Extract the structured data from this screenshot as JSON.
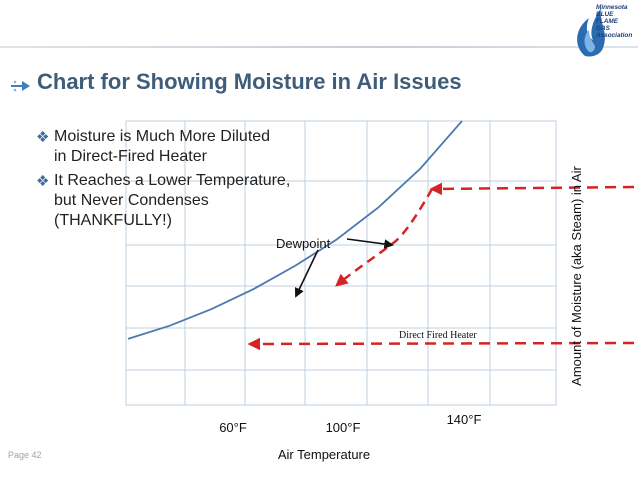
{
  "slide": {
    "title": "Chart for Showing Moisture in Air Issues",
    "page_label": "Page 42",
    "logo_lines": [
      "Minnesota",
      "BLUE",
      "FLAME",
      "GAS",
      "Association"
    ],
    "bullets": [
      {
        "lines": [
          "Moisture is Much More Diluted",
          "in Direct-Fired Heater"
        ]
      },
      {
        "lines": [
          "It Reaches a Lower Temperature,",
          "but Never Condenses",
          "(THANKFULLY!)"
        ]
      }
    ],
    "colors": {
      "title": "#3d5d7b",
      "curve": "#4a7ab0",
      "grid": "#bfd0e0",
      "arrow": "#d62424",
      "logo": "#1f3f7a"
    }
  },
  "chart_data": {
    "type": "line",
    "title": "",
    "xlabel": "Air Temperature",
    "ylabel": "Amount of Moisture (aka Steam) in Air",
    "x_ticks": [
      "60°F",
      "100°F",
      "140°F"
    ],
    "grid": true,
    "series": [
      {
        "x": [
          0,
          1,
          2,
          3,
          4,
          5,
          6,
          7,
          8
        ],
        "y": [
          0.1,
          0.22,
          0.37,
          0.55,
          0.76,
          1.0,
          1.29,
          1.64,
          2.07
        ]
      }
    ],
    "annotations": [
      {
        "label": "Dewpoint"
      },
      {
        "label": "Direct Fired Heater"
      }
    ]
  }
}
